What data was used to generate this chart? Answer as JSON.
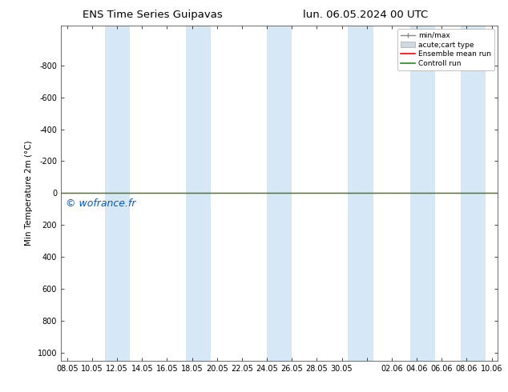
{
  "title_left": "ENS Time Series Guipavas",
  "title_right": "lun. 06.05.2024 00 UTC",
  "ylabel": "Min Temperature 2m (°C)",
  "yticks": [
    -800,
    -600,
    -400,
    -200,
    0,
    200,
    400,
    600,
    800,
    1000
  ],
  "shade_pairs": [
    [
      3.0,
      5.0
    ],
    [
      9.5,
      11.5
    ],
    [
      16.0,
      18.0
    ],
    [
      22.5,
      24.5
    ],
    [
      27.5,
      29.5
    ],
    [
      31.5,
      33.5
    ]
  ],
  "shade_color": "#d6e8f5",
  "line_color_ensemble": "#ff0000",
  "line_color_control": "#228b22",
  "watermark": "© wofrance.fr",
  "watermark_color": "#0055cc",
  "bg_color": "#ffffff",
  "legend_labels": [
    "min/max",
    "acute;cart type",
    "Ensemble mean run",
    "Controll run"
  ],
  "xtick_positions": [
    0,
    2,
    4,
    6,
    8,
    10,
    12,
    14,
    16,
    18,
    20,
    22,
    24,
    26,
    28,
    30,
    32,
    34
  ],
  "xtick_labels": [
    "08.05",
    "10.05",
    "12.05",
    "14.05",
    "16.05",
    "18.05",
    "20.05",
    "22.05",
    "24.05",
    "26.05",
    "28.05",
    "30.05",
    "",
    "02.06",
    "04.06",
    "06.06",
    "08.06",
    "10.06"
  ],
  "xlim": [
    -0.5,
    34.5
  ]
}
